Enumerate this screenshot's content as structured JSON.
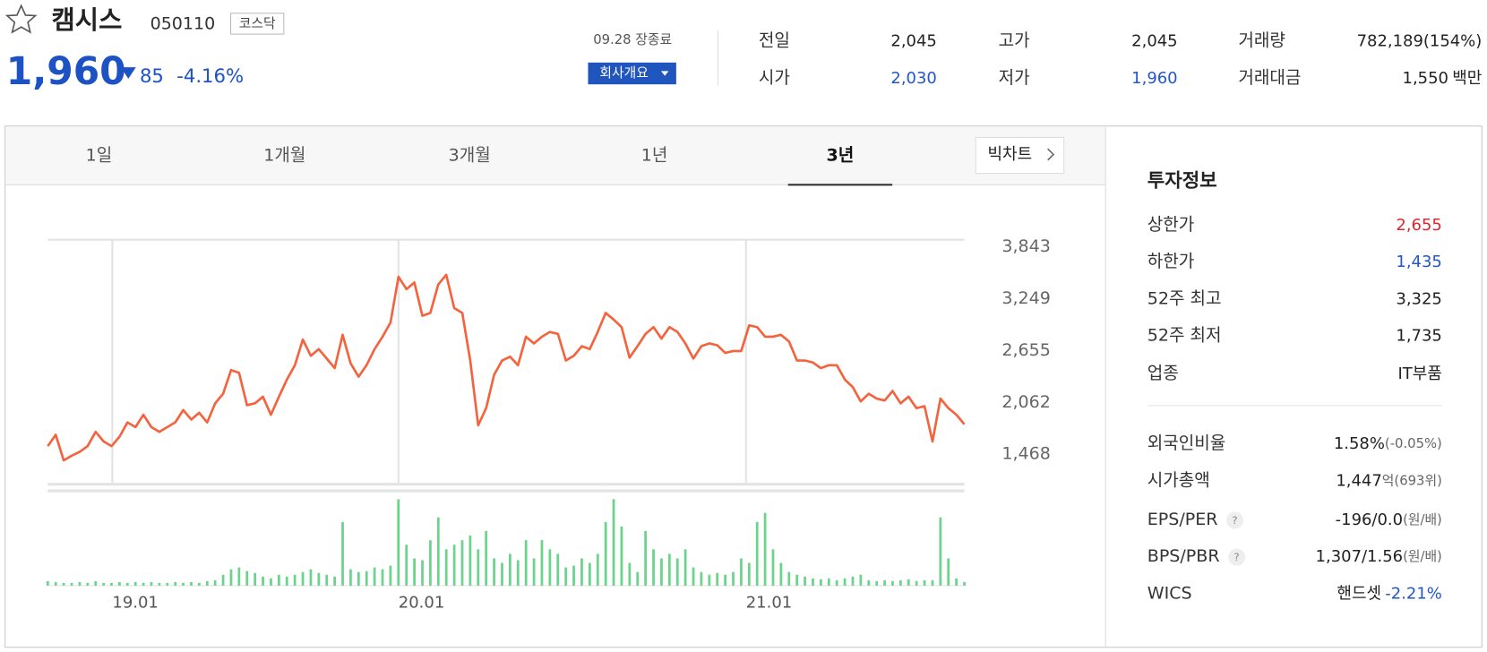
{
  "header": {
    "title": "캠시스",
    "code": "050110",
    "market": "코스닥",
    "price": "1,960",
    "change": "85",
    "change_rate": "-4.16%",
    "date": "09.28 장종료",
    "company_button": "회사개요"
  },
  "summary": [
    {
      "label": "전일",
      "parts": [
        {
          "text": "2,045"
        }
      ]
    },
    {
      "label": "고가",
      "parts": [
        {
          "text": "2,045"
        }
      ]
    },
    {
      "label": "거래량",
      "parts": [
        {
          "text": "782,189(154%)"
        }
      ]
    },
    {
      "label": "시가",
      "parts": [
        {
          "text": "2,030",
          "color": "#2356c7"
        }
      ]
    },
    {
      "label": "저가",
      "parts": [
        {
          "text": "1,960",
          "color": "#2356c7"
        }
      ]
    },
    {
      "label": "거래대금",
      "parts": [
        {
          "text": "1,550"
        },
        {
          "text": "백만"
        }
      ]
    }
  ],
  "tabs": [
    "1일",
    "1개월",
    "3개월",
    "1년",
    "3년"
  ],
  "active_tab": 4,
  "big_chart": "빅차트",
  "info": {
    "title": "투자정보",
    "rows": [
      {
        "label": "상한가",
        "parts": [
          {
            "text": "2,655",
            "color": "#e0262d"
          }
        ]
      },
      {
        "label": "하한가",
        "parts": [
          {
            "text": "1,435",
            "color": "#2356c7"
          }
        ]
      },
      {
        "label": "52주 최고",
        "parts": [
          {
            "text": "3,325"
          }
        ]
      },
      {
        "label": "52주 최저",
        "parts": [
          {
            "text": "1,735"
          }
        ]
      },
      {
        "label": "업종",
        "parts": [
          {
            "text": "IT부품"
          }
        ]
      },
      {
        "label": "외국인비율",
        "parts": [
          {
            "text": "1.58%"
          },
          {
            "text": "(-0.05%)",
            "small": true
          }
        ]
      },
      {
        "label": "시가총액",
        "parts": [
          {
            "text": "1,447"
          },
          {
            "text": "억",
            "small": true
          },
          {
            "text": "(693위)",
            "small": true
          }
        ]
      },
      {
        "label": "EPS/PER",
        "help": true,
        "parts": [
          {
            "text": "-196/0.0"
          },
          {
            "text": "(원/배)",
            "small": true
          }
        ]
      },
      {
        "label": "BPS/PBR",
        "help": true,
        "parts": [
          {
            "text": "1,307/1.56"
          },
          {
            "text": "(원/배)",
            "small": true
          }
        ]
      },
      {
        "label": "WICS",
        "parts": [
          {
            "text": "핸드셋"
          },
          {
            "text": "-2.21%",
            "color": "#2356c7"
          }
        ]
      }
    ]
  },
  "chart_data": [
    {
      "type": "line",
      "color": "#f4633d",
      "grid": true,
      "x": [
        0,
        1,
        2,
        3,
        4,
        5,
        6,
        7,
        8,
        9,
        10,
        11,
        12,
        13,
        14,
        15,
        16,
        17,
        18,
        19,
        20,
        21,
        22,
        23,
        24,
        25,
        26,
        27,
        28,
        29,
        30,
        31,
        32,
        33,
        34,
        35,
        36,
        37,
        38,
        39,
        40,
        41,
        42,
        43,
        44,
        45,
        46,
        47,
        48,
        49,
        50,
        51,
        52,
        53,
        54,
        55,
        56,
        57,
        58,
        59,
        60,
        61,
        62,
        63,
        64,
        65,
        66,
        67,
        68,
        69,
        70,
        71,
        72,
        73,
        74,
        75,
        76,
        77,
        78,
        79,
        80,
        81,
        82,
        83,
        84,
        85,
        86,
        87,
        88,
        89,
        90,
        91,
        92,
        93,
        94,
        95,
        96,
        97,
        98,
        99,
        100,
        101,
        102,
        103,
        104,
        105,
        106,
        107,
        108,
        109,
        110,
        111,
        112,
        113,
        114,
        115
      ],
      "values": [
        1555,
        1686,
        1392,
        1446,
        1490,
        1555,
        1719,
        1610,
        1555,
        1664,
        1828,
        1773,
        1915,
        1773,
        1719,
        1773,
        1828,
        1969,
        1860,
        1937,
        1828,
        2046,
        2155,
        2427,
        2395,
        2024,
        2046,
        2122,
        1915,
        2122,
        2318,
        2482,
        2776,
        2591,
        2667,
        2558,
        2449,
        2831,
        2504,
        2351,
        2482,
        2667,
        2809,
        2972,
        3495,
        3354,
        3430,
        3049,
        3081,
        3408,
        3517,
        3136,
        3081,
        2536,
        1795,
        1991,
        2373,
        2536,
        2580,
        2482,
        2809,
        2732,
        2809,
        2863,
        2841,
        2536,
        2591,
        2700,
        2667,
        2863,
        3081,
        3005,
        2918,
        2569,
        2700,
        2841,
        2918,
        2787,
        2918,
        2863,
        2732,
        2558,
        2700,
        2732,
        2711,
        2623,
        2645,
        2645,
        2939,
        2918,
        2809,
        2809,
        2831,
        2754,
        2536,
        2536,
        2514,
        2449,
        2482,
        2482,
        2318,
        2231,
        2068,
        2155,
        2100,
        2078,
        2187,
        2046,
        2122,
        1991,
        2013,
        1610,
        2100,
        1991,
        1915,
        1806
      ],
      "xlim": [
        0,
        115
      ],
      "xticks": [
        {
          "value": 8.1,
          "label": "19.01"
        },
        {
          "value": 44,
          "label": "20.01"
        },
        {
          "value": 87.6,
          "label": "21.01"
        }
      ],
      "ylim": [
        1119,
        3919
      ],
      "yticks": [
        {
          "value": 3843,
          "label": "3,843"
        },
        {
          "value": 3249,
          "label": "3,249"
        },
        {
          "value": 2655,
          "label": "2,655"
        },
        {
          "value": 2062,
          "label": "2,062"
        },
        {
          "value": 1468,
          "label": "1,468"
        }
      ]
    },
    {
      "type": "bar",
      "color": "#6bd38c",
      "x": [
        0,
        1,
        2,
        3,
        4,
        5,
        6,
        7,
        8,
        9,
        10,
        11,
        12,
        13,
        14,
        15,
        16,
        17,
        18,
        19,
        20,
        21,
        22,
        23,
        24,
        25,
        26,
        27,
        28,
        29,
        30,
        31,
        32,
        33,
        34,
        35,
        36,
        37,
        38,
        39,
        40,
        41,
        42,
        43,
        44,
        45,
        46,
        47,
        48,
        49,
        50,
        51,
        52,
        53,
        54,
        55,
        56,
        57,
        58,
        59,
        60,
        61,
        62,
        63,
        64,
        65,
        66,
        67,
        68,
        69,
        70,
        71,
        72,
        73,
        74,
        75,
        76,
        77,
        78,
        79,
        80,
        81,
        82,
        83,
        84,
        85,
        86,
        87,
        88,
        89,
        90,
        91,
        92,
        93,
        94,
        95,
        96,
        97,
        98,
        99,
        100,
        101,
        102,
        103,
        104,
        105,
        106,
        107,
        108,
        109,
        110,
        111,
        112,
        113,
        114,
        115
      ],
      "values": [
        5,
        4,
        3,
        3,
        4,
        3,
        5,
        3,
        3,
        4,
        3,
        4,
        3,
        4,
        3,
        3,
        4,
        3,
        4,
        3,
        5,
        6,
        12,
        18,
        20,
        16,
        14,
        10,
        8,
        12,
        10,
        12,
        15,
        18,
        14,
        12,
        10,
        70,
        18,
        15,
        16,
        20,
        18,
        22,
        95,
        45,
        30,
        28,
        50,
        75,
        40,
        45,
        50,
        55,
        40,
        60,
        30,
        25,
        35,
        28,
        50,
        30,
        50,
        40,
        35,
        20,
        22,
        30,
        25,
        35,
        70,
        95,
        65,
        25,
        15,
        60,
        40,
        30,
        35,
        30,
        40,
        20,
        15,
        12,
        14,
        12,
        15,
        30,
        25,
        70,
        80,
        40,
        25,
        15,
        12,
        10,
        8,
        7,
        8,
        6,
        8,
        10,
        12,
        6,
        5,
        6,
        5,
        6,
        7,
        5,
        6,
        6,
        75,
        30,
        8,
        4
      ],
      "xlim": [
        0,
        115
      ],
      "ylim": [
        0,
        100
      ]
    }
  ]
}
